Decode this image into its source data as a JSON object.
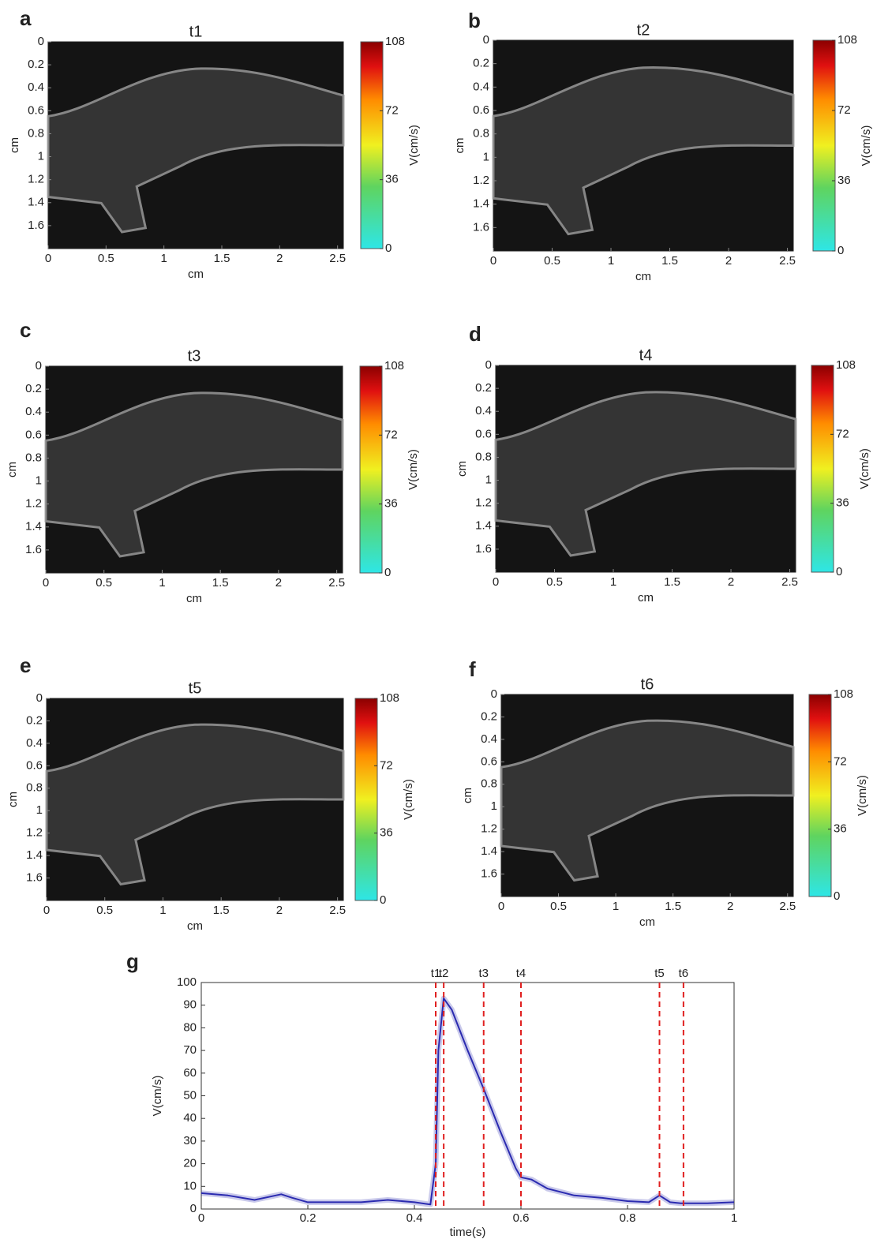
{
  "chart_data": [
    {
      "type": "vector_field",
      "panel_label": "a",
      "title": "t1",
      "xlabel": "cm",
      "ylabel": "cm",
      "xlim": [
        0,
        2.55
      ],
      "ylim": [
        0,
        1.8
      ],
      "y_inverted": true,
      "xticks": [
        0,
        0.5,
        1,
        1.5,
        2,
        2.5
      ],
      "yticks": [
        0,
        0.2,
        0.4,
        0.6,
        0.8,
        1,
        1.2,
        1.4,
        1.6
      ],
      "colorbar": {
        "label": "V(cm/s)",
        "lim": [
          0,
          108
        ],
        "ticks": [
          0,
          36,
          72,
          108
        ]
      }
    },
    {
      "type": "vector_field",
      "panel_label": "b",
      "title": "t2",
      "xlabel": "cm",
      "ylabel": "cm",
      "xlim": [
        0,
        2.55
      ],
      "ylim": [
        0,
        1.8
      ],
      "y_inverted": true,
      "xticks": [
        0,
        0.5,
        1,
        1.5,
        2,
        2.5
      ],
      "yticks": [
        0,
        0.2,
        0.4,
        0.6,
        0.8,
        1,
        1.2,
        1.4,
        1.6
      ],
      "colorbar": {
        "label": "V(cm/s)",
        "lim": [
          0,
          108
        ],
        "ticks": [
          0,
          36,
          72,
          108
        ]
      }
    },
    {
      "type": "vector_field",
      "panel_label": "c",
      "title": "t3",
      "xlabel": "cm",
      "ylabel": "cm",
      "xlim": [
        0,
        2.55
      ],
      "ylim": [
        0,
        1.8
      ],
      "y_inverted": true,
      "xticks": [
        0,
        0.5,
        1,
        1.5,
        2,
        2.5
      ],
      "yticks": [
        0,
        0.2,
        0.4,
        0.6,
        0.8,
        1,
        1.2,
        1.4,
        1.6
      ],
      "colorbar": {
        "label": "V(cm/s)",
        "lim": [
          0,
          108
        ],
        "ticks": [
          0,
          36,
          72,
          108
        ]
      }
    },
    {
      "type": "vector_field",
      "panel_label": "d",
      "title": "t4",
      "xlabel": "cm",
      "ylabel": "cm",
      "xlim": [
        0,
        2.55
      ],
      "ylim": [
        0,
        1.8
      ],
      "y_inverted": true,
      "xticks": [
        0,
        0.5,
        1,
        1.5,
        2,
        2.5
      ],
      "yticks": [
        0,
        0.2,
        0.4,
        0.6,
        0.8,
        1,
        1.2,
        1.4,
        1.6
      ],
      "colorbar": {
        "label": "V(cm/s)",
        "lim": [
          0,
          108
        ],
        "ticks": [
          0,
          36,
          72,
          108
        ]
      }
    },
    {
      "type": "vector_field",
      "panel_label": "e",
      "title": "t5",
      "xlabel": "cm",
      "ylabel": "cm",
      "xlim": [
        0,
        2.55
      ],
      "ylim": [
        0,
        1.8
      ],
      "y_inverted": true,
      "xticks": [
        0,
        0.5,
        1,
        1.5,
        2,
        2.5
      ],
      "yticks": [
        0,
        0.2,
        0.4,
        0.6,
        0.8,
        1,
        1.2,
        1.4,
        1.6
      ],
      "colorbar": {
        "label": "V(cm/s)",
        "lim": [
          0,
          108
        ],
        "ticks": [
          0,
          36,
          72,
          108
        ]
      }
    },
    {
      "type": "vector_field",
      "panel_label": "f",
      "title": "t6",
      "xlabel": "cm",
      "ylabel": "cm",
      "xlim": [
        0,
        2.55
      ],
      "ylim": [
        0,
        1.8
      ],
      "y_inverted": true,
      "xticks": [
        0,
        0.5,
        1,
        1.5,
        2,
        2.5
      ],
      "yticks": [
        0,
        0.2,
        0.4,
        0.6,
        0.8,
        1,
        1.2,
        1.4,
        1.6
      ],
      "colorbar": {
        "label": "V(cm/s)",
        "lim": [
          0,
          108
        ],
        "ticks": [
          0,
          36,
          72,
          108
        ]
      }
    },
    {
      "type": "line",
      "panel_label": "g",
      "xlabel": "time(s)",
      "ylabel": "V(cm/s)",
      "xlim": [
        0,
        1
      ],
      "ylim": [
        0,
        100
      ],
      "xticks": [
        0,
        0.2,
        0.4,
        0.6,
        0.8,
        1
      ],
      "yticks": [
        0,
        10,
        20,
        30,
        40,
        50,
        60,
        70,
        80,
        90,
        100
      ],
      "series": [
        {
          "color": "#2b2bb0",
          "x": [
            0,
            0.05,
            0.1,
            0.15,
            0.17,
            0.2,
            0.25,
            0.3,
            0.35,
            0.4,
            0.43,
            0.44,
            0.445,
            0.455,
            0.47,
            0.5,
            0.53,
            0.56,
            0.59,
            0.6,
            0.62,
            0.65,
            0.7,
            0.75,
            0.8,
            0.84,
            0.86,
            0.88,
            0.9,
            0.95,
            1
          ],
          "values": [
            7,
            6,
            4,
            6.5,
            5,
            3,
            3,
            3,
            4,
            3,
            2,
            20,
            70,
            93,
            88,
            70,
            53,
            35,
            18,
            14,
            13,
            9,
            6,
            5,
            3.5,
            3,
            6,
            3,
            2.5,
            2.5,
            3
          ]
        }
      ],
      "markers": [
        {
          "x": 0.44,
          "label": "t1"
        },
        {
          "x": 0.455,
          "label": "t2"
        },
        {
          "x": 0.53,
          "label": "t3"
        },
        {
          "x": 0.6,
          "label": "t4"
        },
        {
          "x": 0.86,
          "label": "t5"
        },
        {
          "x": 0.905,
          "label": "t6"
        }
      ],
      "marker_color": "#e02020"
    }
  ]
}
